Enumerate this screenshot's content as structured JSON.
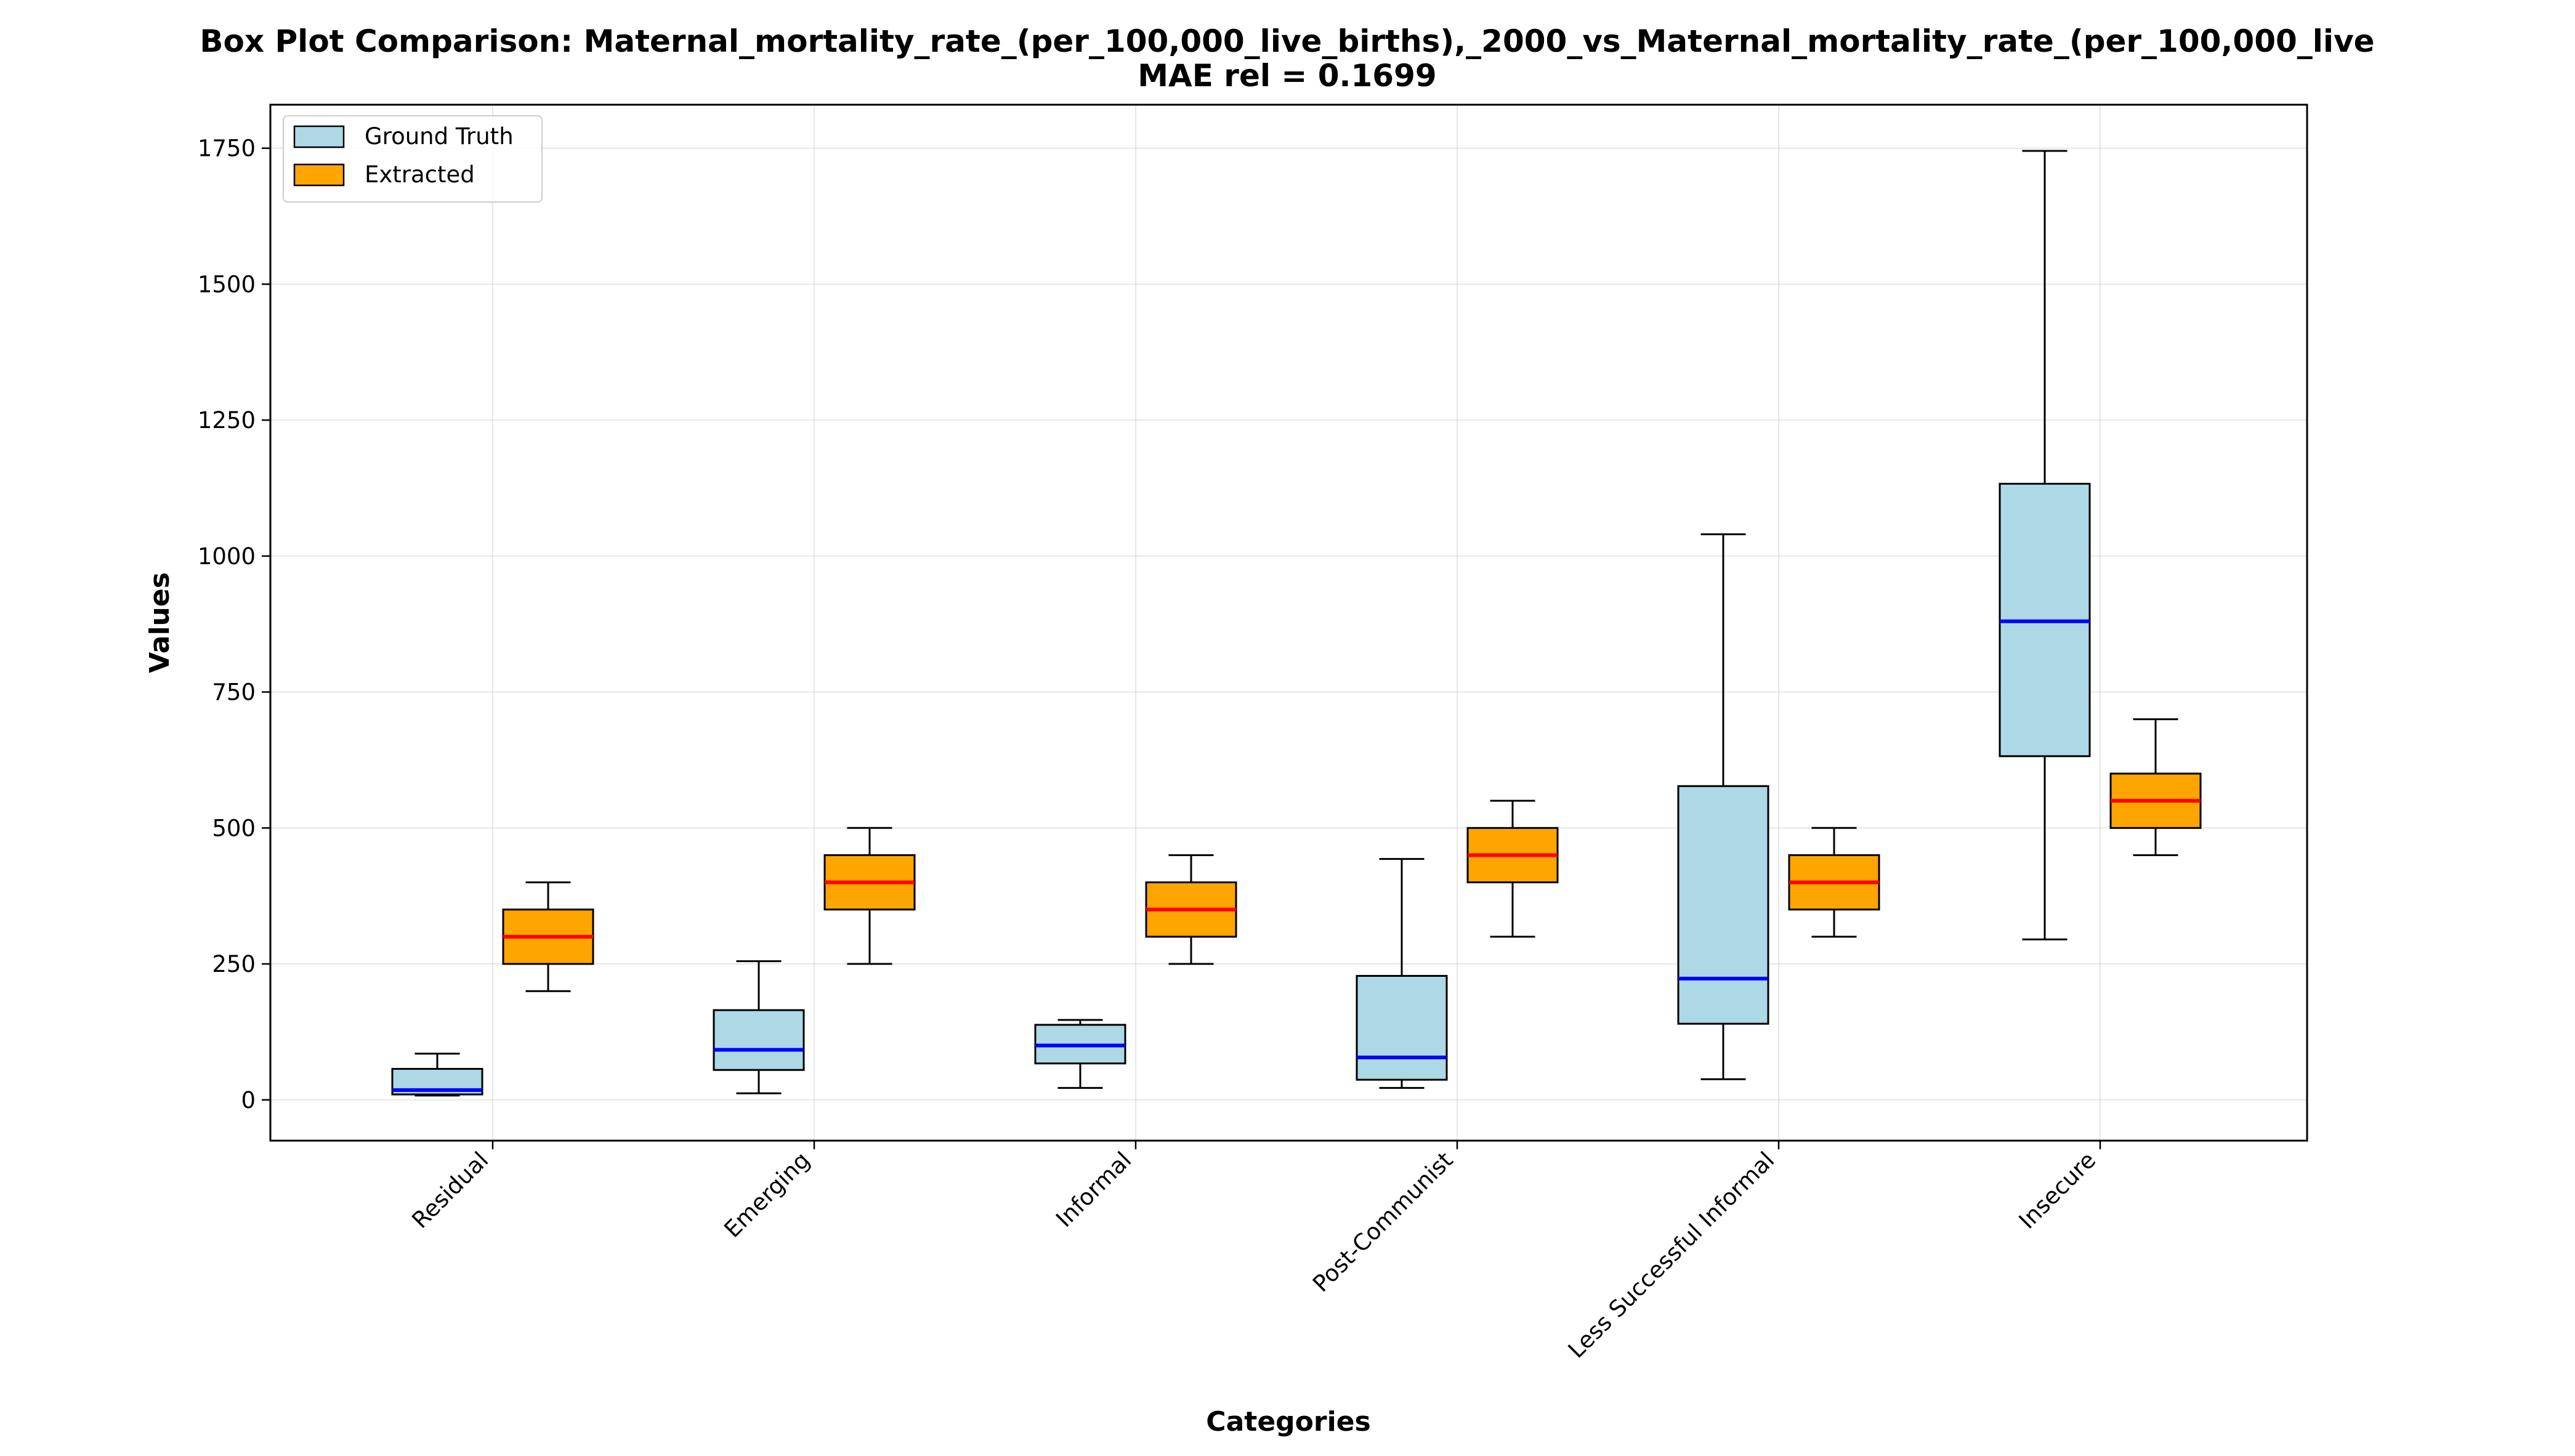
{
  "chart_data": {
    "type": "box",
    "title": "Box Plot Comparison: Maternal_mortality_rate_(per_100,000_live_births),_2000_vs_Maternal_mortality_rate_(per_100,000_live",
    "subtitle": "MAE rel = 0.1699",
    "xlabel": "Categories",
    "ylabel": "Values",
    "ylim": [
      -75,
      1830
    ],
    "yticks": [
      0,
      250,
      500,
      750,
      1000,
      1250,
      1500,
      1750
    ],
    "grid": true,
    "legend_position": "top-left",
    "categories": [
      "Residual",
      "Emerging",
      "Informal",
      "Post-Communist",
      "Less Successful Informal",
      "Insecure"
    ],
    "series": [
      {
        "name": "Ground Truth",
        "fill": "#add8e6",
        "median_color": "#0000ff",
        "boxes": [
          {
            "whislo": 8,
            "q1": 10,
            "med": 18,
            "q3": 57,
            "whishi": 85
          },
          {
            "whislo": 12,
            "q1": 55,
            "med": 92,
            "q3": 165,
            "whishi": 255
          },
          {
            "whislo": 22,
            "q1": 67,
            "med": 100,
            "q3": 138,
            "whishi": 147
          },
          {
            "whislo": 22,
            "q1": 37,
            "med": 78,
            "q3": 228,
            "whishi": 443
          },
          {
            "whislo": 38,
            "q1": 140,
            "med": 223,
            "q3": 577,
            "whishi": 1040
          },
          {
            "whislo": 295,
            "q1": 632,
            "med": 880,
            "q3": 1133,
            "whishi": 1745
          }
        ]
      },
      {
        "name": "Extracted",
        "fill": "#ffa500",
        "median_color": "#ff0000",
        "boxes": [
          {
            "whislo": 200,
            "q1": 250,
            "med": 300,
            "q3": 350,
            "whishi": 400
          },
          {
            "whislo": 250,
            "q1": 350,
            "med": 400,
            "q3": 450,
            "whishi": 500
          },
          {
            "whislo": 250,
            "q1": 300,
            "med": 350,
            "q3": 400,
            "whishi": 450
          },
          {
            "whislo": 300,
            "q1": 400,
            "med": 450,
            "q3": 500,
            "whishi": 550
          },
          {
            "whislo": 300,
            "q1": 350,
            "med": 400,
            "q3": 450,
            "whishi": 500
          },
          {
            "whislo": 450,
            "q1": 500,
            "med": 550,
            "q3": 600,
            "whishi": 700
          }
        ]
      }
    ]
  }
}
